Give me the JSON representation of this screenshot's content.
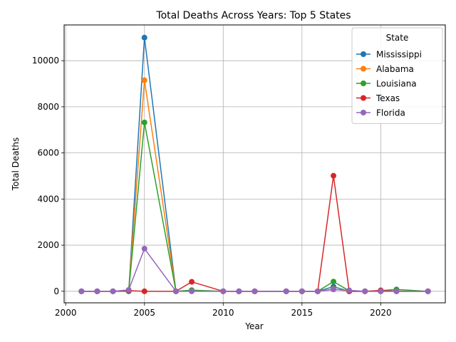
{
  "chart_data": {
    "type": "line",
    "title": "Total Deaths Across Years: Top 5 States",
    "xlabel": "Year",
    "ylabel": "Total Deaths",
    "xlim": [
      1999.9,
      2024.1
    ],
    "ylim": [
      -500,
      11550
    ],
    "x_ticks": [
      2000,
      2005,
      2010,
      2015,
      2020
    ],
    "y_ticks": [
      0,
      2000,
      4000,
      6000,
      8000,
      10000
    ],
    "grid": true,
    "legend": {
      "title": "State",
      "placement": "top-right"
    },
    "x": [
      2001,
      2002,
      2003,
      2004,
      2005,
      2007,
      2008,
      2010,
      2011,
      2012,
      2014,
      2015,
      2016,
      2017,
      2018,
      2019,
      2020,
      2021,
      2023
    ],
    "series": [
      {
        "name": "Mississippi",
        "color": "#1f77b4",
        "values": [
          0,
          0,
          0,
          5,
          11000,
          0,
          10,
          0,
          0,
          0,
          0,
          0,
          0,
          200,
          0,
          0,
          0,
          0,
          0
        ]
      },
      {
        "name": "Alabama",
        "color": "#ff7f0e",
        "values": [
          0,
          0,
          0,
          10,
          9150,
          0,
          20,
          0,
          0,
          0,
          0,
          0,
          0,
          100,
          0,
          0,
          0,
          10,
          0
        ]
      },
      {
        "name": "Louisiana",
        "color": "#2ca02c",
        "values": [
          0,
          0,
          0,
          0,
          7320,
          0,
          50,
          0,
          0,
          0,
          0,
          0,
          0,
          420,
          20,
          0,
          30,
          80,
          0
        ]
      },
      {
        "name": "Texas",
        "color": "#d62728",
        "values": [
          0,
          0,
          0,
          30,
          0,
          0,
          410,
          0,
          0,
          0,
          0,
          0,
          0,
          5010,
          0,
          0,
          40,
          0,
          0
        ]
      },
      {
        "name": "Florida",
        "color": "#9467bd",
        "values": [
          0,
          0,
          0,
          60,
          1850,
          0,
          0,
          0,
          0,
          0,
          0,
          0,
          0,
          80,
          40,
          0,
          0,
          0,
          0
        ]
      }
    ]
  }
}
